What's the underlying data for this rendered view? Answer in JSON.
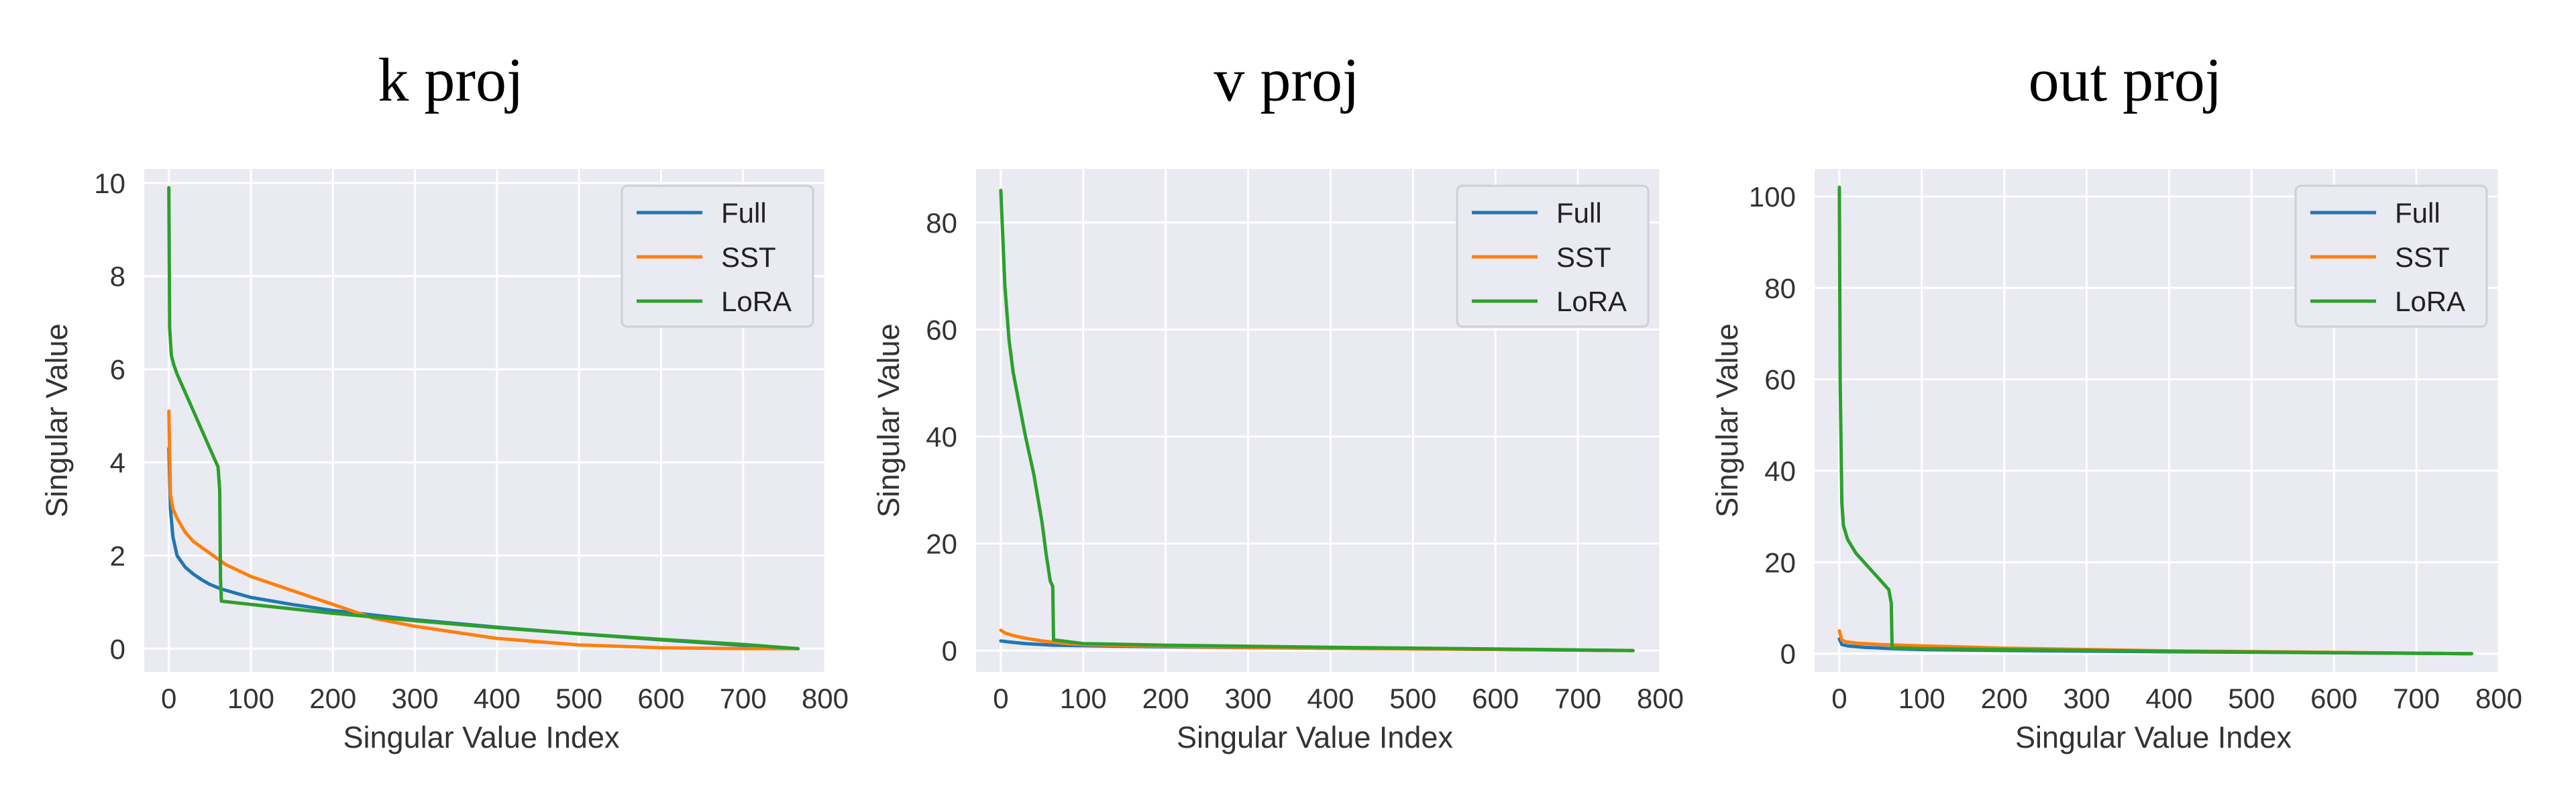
{
  "figure": {
    "panels": 3
  },
  "colors": {
    "Full": "#1f77b4",
    "SST": "#ff7f0e",
    "LoRA": "#2ca02c",
    "plot_background": "#eaeaf2",
    "grid": "#ffffff"
  },
  "chart_data": [
    {
      "type": "line",
      "title": "k proj",
      "xlabel": "Singular Value Index",
      "ylabel": "Singular Value",
      "xlim": [
        -30,
        800
      ],
      "ylim": [
        -0.5,
        10.3
      ],
      "xticks": [
        0,
        100,
        200,
        300,
        400,
        500,
        600,
        700,
        800
      ],
      "yticks": [
        0,
        2,
        4,
        6,
        8,
        10
      ],
      "grid": true,
      "legend": {
        "position": "top-right",
        "entries": [
          "Full",
          "SST",
          "LoRA"
        ]
      },
      "series": [
        {
          "name": "Full",
          "x": [
            0,
            2,
            5,
            10,
            20,
            30,
            40,
            50,
            64,
            100,
            150,
            200,
            300,
            400,
            500,
            600,
            700,
            767
          ],
          "y": [
            4.3,
            3.0,
            2.4,
            2.0,
            1.75,
            1.6,
            1.48,
            1.38,
            1.28,
            1.1,
            0.95,
            0.82,
            0.62,
            0.46,
            0.32,
            0.19,
            0.07,
            0.0
          ]
        },
        {
          "name": "SST",
          "x": [
            0,
            2,
            5,
            10,
            20,
            30,
            50,
            70,
            100,
            150,
            200,
            250,
            300,
            400,
            500,
            600,
            700,
            767
          ],
          "y": [
            5.1,
            3.3,
            3.0,
            2.8,
            2.5,
            2.3,
            2.05,
            1.8,
            1.55,
            1.25,
            0.95,
            0.65,
            0.48,
            0.22,
            0.08,
            0.02,
            0.0,
            0.0
          ]
        },
        {
          "name": "LoRA",
          "x": [
            0,
            1,
            3,
            6,
            10,
            20,
            30,
            40,
            50,
            60,
            62,
            63,
            64,
            100,
            200,
            300,
            400,
            500,
            600,
            700,
            767
          ],
          "y": [
            9.9,
            6.9,
            6.3,
            6.1,
            5.9,
            5.5,
            5.1,
            4.7,
            4.3,
            3.9,
            3.4,
            1.5,
            1.02,
            0.95,
            0.76,
            0.6,
            0.45,
            0.32,
            0.2,
            0.09,
            0.0
          ]
        }
      ]
    },
    {
      "type": "line",
      "title": "v proj",
      "xlabel": "Singular Value Index",
      "ylabel": "Singular Value",
      "xlim": [
        -30,
        800
      ],
      "ylim": [
        -4,
        90
      ],
      "xticks": [
        0,
        100,
        200,
        300,
        400,
        500,
        600,
        700,
        800
      ],
      "yticks": [
        0,
        20,
        40,
        60,
        80
      ],
      "grid": true,
      "legend": {
        "position": "top-right",
        "entries": [
          "Full",
          "SST",
          "LoRA"
        ]
      },
      "series": [
        {
          "name": "Full",
          "x": [
            0,
            10,
            30,
            64,
            100,
            200,
            400,
            600,
            767
          ],
          "y": [
            1.8,
            1.6,
            1.3,
            1.0,
            0.9,
            0.7,
            0.4,
            0.2,
            0.0
          ]
        },
        {
          "name": "SST",
          "x": [
            0,
            5,
            15,
            30,
            50,
            80,
            100,
            200,
            400,
            600,
            767
          ],
          "y": [
            3.8,
            3.3,
            2.8,
            2.3,
            1.8,
            1.3,
            1.1,
            0.8,
            0.4,
            0.2,
            0.0
          ]
        },
        {
          "name": "LoRA",
          "x": [
            0,
            2,
            5,
            10,
            15,
            20,
            30,
            40,
            50,
            55,
            60,
            63,
            64,
            100,
            200,
            400,
            600,
            767
          ],
          "y": [
            86,
            79,
            68,
            58,
            52,
            48,
            40,
            33,
            24,
            18,
            13,
            12,
            2.0,
            1.3,
            1.0,
            0.6,
            0.3,
            0.0
          ]
        }
      ]
    },
    {
      "type": "line",
      "title": "out proj",
      "xlabel": "Singular Value Index",
      "ylabel": "Singular Value",
      "xlim": [
        -30,
        800
      ],
      "ylim": [
        -4,
        106
      ],
      "xticks": [
        0,
        100,
        200,
        300,
        400,
        500,
        600,
        700,
        800
      ],
      "yticks": [
        0,
        20,
        40,
        60,
        80,
        100
      ],
      "grid": true,
      "legend": {
        "position": "top-right",
        "entries": [
          "Full",
          "SST",
          "LoRA"
        ]
      },
      "series": [
        {
          "name": "Full",
          "x": [
            0,
            3,
            10,
            30,
            64,
            100,
            200,
            400,
            600,
            767
          ],
          "y": [
            3.2,
            2.0,
            1.7,
            1.4,
            1.1,
            0.9,
            0.7,
            0.4,
            0.2,
            0.0
          ]
        },
        {
          "name": "SST",
          "x": [
            0,
            3,
            8,
            20,
            50,
            100,
            200,
            400,
            600,
            767
          ],
          "y": [
            5.0,
            3.0,
            2.6,
            2.3,
            2.0,
            1.7,
            1.2,
            0.6,
            0.3,
            0.0
          ]
        },
        {
          "name": "LoRA",
          "x": [
            0,
            1,
            3,
            5,
            10,
            20,
            30,
            40,
            50,
            60,
            62,
            63,
            64,
            100,
            200,
            400,
            600,
            767
          ],
          "y": [
            102,
            60,
            33,
            28,
            25,
            22,
            20,
            18,
            16,
            14,
            12,
            11,
            1.3,
            1.1,
            0.9,
            0.5,
            0.2,
            0.0
          ]
        }
      ]
    }
  ]
}
